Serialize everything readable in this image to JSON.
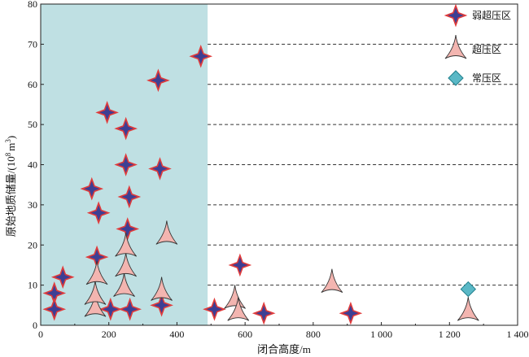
{
  "chart_data": {
    "type": "scatter",
    "xlabel": "闭合高度/m",
    "ylabel_main": "原始地质储量/(10",
    "ylabel_exp": "8",
    "ylabel_unit": "m",
    "ylabel_unit_exp": "3",
    "ylabel_close": ")",
    "xlim": [
      0,
      1400
    ],
    "ylim": [
      0,
      80
    ],
    "x_ticks": [
      0,
      200,
      400,
      600,
      800,
      1000,
      1200,
      1400
    ],
    "x_tick_labels": [
      "0",
      "200",
      "400",
      "600",
      "800",
      "1 000",
      "1 200",
      "1 400"
    ],
    "y_ticks": [
      0,
      10,
      20,
      30,
      40,
      50,
      60,
      70,
      80
    ],
    "y_tick_labels": [
      "0",
      "10",
      "20",
      "30",
      "40",
      "50",
      "60",
      "70",
      "80"
    ],
    "dashed_gridlines_y": [
      10,
      20,
      30,
      40,
      50,
      60,
      70
    ],
    "dashed_grid_x_start": 490,
    "shaded_region": {
      "x": [
        0,
        490
      ],
      "y": [
        0,
        80
      ],
      "color": "#bfe0e3"
    },
    "legend_placement": "top-right",
    "colors": {
      "weak_fill": "#3d3f94",
      "weak_stroke": "#e03b3b",
      "over_fill": "#f3b5b0",
      "over_stroke": "#333333",
      "normal_fill": "#5ab8c6",
      "normal_stroke": "#1f7f8c"
    },
    "series": [
      {
        "name": "弱超压区",
        "marker": "star4",
        "points": [
          [
            40,
            8
          ],
          [
            40,
            4
          ],
          [
            65,
            12
          ],
          [
            150,
            34
          ],
          [
            165,
            17
          ],
          [
            170,
            28
          ],
          [
            195,
            53
          ],
          [
            205,
            4
          ],
          [
            250,
            49
          ],
          [
            250,
            40
          ],
          [
            255,
            24
          ],
          [
            260,
            32
          ],
          [
            262,
            4
          ],
          [
            345,
            61
          ],
          [
            350,
            39
          ],
          [
            355,
            5
          ],
          [
            470,
            67
          ],
          [
            510,
            4
          ],
          [
            585,
            15
          ],
          [
            655,
            3
          ],
          [
            910,
            3
          ]
        ]
      },
      {
        "name": "超压区",
        "marker": "arrowhead",
        "points": [
          [
            160,
            4
          ],
          [
            160,
            7
          ],
          [
            165,
            12
          ],
          [
            245,
            9
          ],
          [
            250,
            14
          ],
          [
            250,
            19
          ],
          [
            355,
            8
          ],
          [
            370,
            22
          ],
          [
            570,
            6
          ],
          [
            580,
            3
          ],
          [
            855,
            10
          ],
          [
            1255,
            3
          ]
        ]
      },
      {
        "name": "常压区",
        "marker": "diamond",
        "points": [
          [
            1255,
            9
          ]
        ]
      }
    ]
  }
}
